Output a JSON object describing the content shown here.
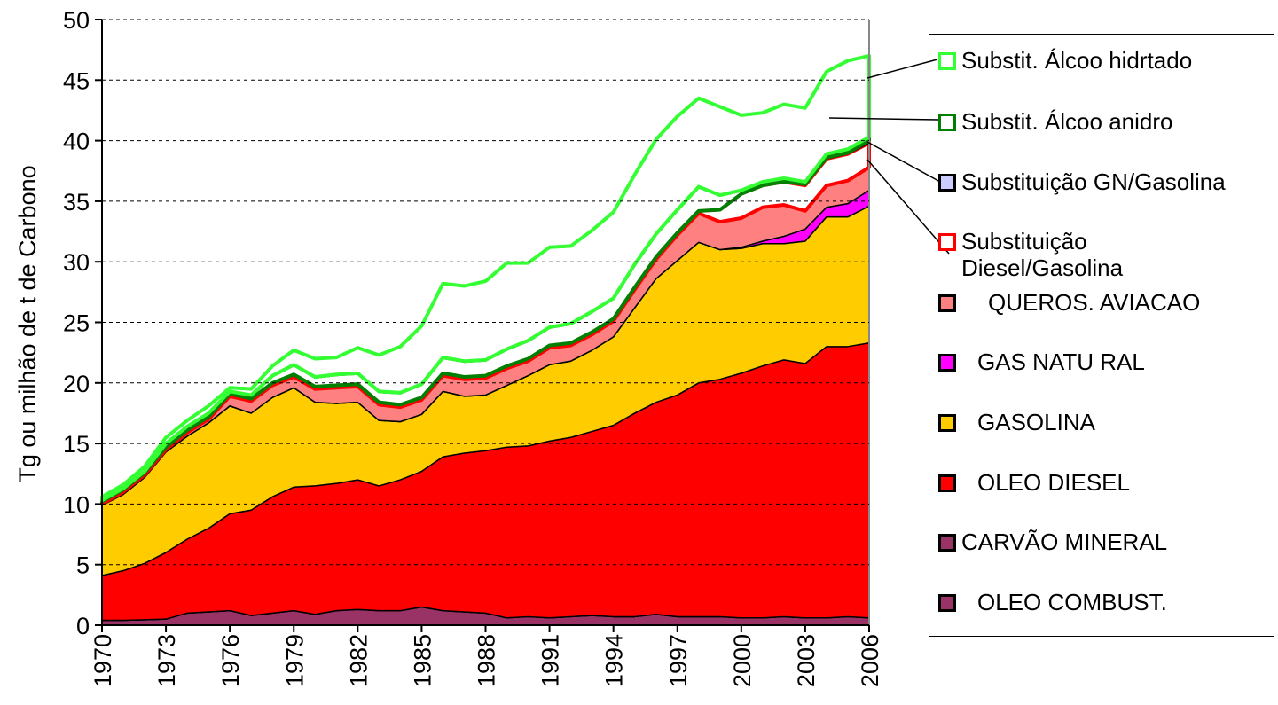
{
  "chart_data": {
    "type": "stacked_area",
    "y_label": "Tg ou milhão de t de Carbono",
    "x": [
      1970,
      1971,
      1972,
      1973,
      1974,
      1975,
      1976,
      1977,
      1978,
      1979,
      1980,
      1981,
      1982,
      1983,
      1984,
      1985,
      1986,
      1987,
      1988,
      1989,
      1990,
      1991,
      1992,
      1993,
      1994,
      1995,
      1996,
      1997,
      1998,
      1999,
      2000,
      2001,
      2002,
      2003,
      2004,
      2005,
      2006
    ],
    "xlim": [
      1970,
      2006
    ],
    "xticks": [
      1970,
      1973,
      1976,
      1979,
      1982,
      1985,
      1988,
      1991,
      1994,
      1997,
      2000,
      2003,
      2006
    ],
    "ylim": [
      0,
      50
    ],
    "yticks": [
      0,
      5,
      10,
      15,
      20,
      25,
      30,
      35,
      40,
      45,
      50
    ],
    "grid": true,
    "legend": "right",
    "series": [
      {
        "name": "OLEO COMBUST.",
        "color": "#000000",
        "fill": "#993366",
        "values": [
          0.4,
          0.4,
          0.45,
          0.5,
          1.0,
          1.1,
          1.2,
          0.8,
          1.0,
          1.2,
          0.9,
          1.2,
          1.3,
          1.2,
          1.2,
          1.5,
          1.2,
          1.1,
          1.0,
          0.6,
          0.7,
          0.6,
          0.7,
          0.8,
          0.7,
          0.7,
          0.9,
          0.7,
          0.7,
          0.7,
          0.6,
          0.6,
          0.7,
          0.6,
          0.6,
          0.7,
          0.6
        ]
      },
      {
        "name": "CARVÃO MINERAL",
        "color": "#000000",
        "fill": "#993366",
        "values": [
          0,
          0,
          0,
          0,
          0,
          0,
          0,
          0,
          0,
          0,
          0,
          0,
          0,
          0,
          0,
          0,
          0,
          0,
          0,
          0,
          0,
          0,
          0,
          0,
          0,
          0,
          0,
          0,
          0,
          0,
          0,
          0,
          0,
          0,
          0,
          0,
          0
        ]
      },
      {
        "name": "OLEO DIESEL",
        "color": "#000000",
        "fill": "#ff0000",
        "values": [
          3.7,
          4.1,
          4.65,
          5.5,
          6.1,
          6.9,
          8.0,
          8.7,
          9.6,
          10.2,
          10.6,
          10.5,
          10.7,
          10.3,
          10.8,
          11.2,
          12.7,
          13.1,
          13.4,
          14.1,
          14.1,
          14.6,
          14.8,
          15.2,
          15.8,
          16.8,
          17.5,
          18.3,
          19.3,
          19.6,
          20.2,
          20.8,
          21.2,
          21.0,
          22.4,
          22.3,
          22.7
        ]
      },
      {
        "name": "GASOLINA",
        "color": "#000000",
        "fill": "#ffcc00",
        "values": [
          5.8,
          6.3,
          7.1,
          8.3,
          8.5,
          8.7,
          8.9,
          8.0,
          8.2,
          8.2,
          6.9,
          6.6,
          6.4,
          5.4,
          4.8,
          4.7,
          5.4,
          4.7,
          4.6,
          5.1,
          5.8,
          6.3,
          6.3,
          6.7,
          7.3,
          8.7,
          10.2,
          11.1,
          11.6,
          10.7,
          10.3,
          10.1,
          9.6,
          10.1,
          10.7,
          10.7,
          11.3
        ]
      },
      {
        "name": "GAS NATU RAL",
        "color": "#000000",
        "fill": "#ff00ff",
        "values": [
          0,
          0,
          0,
          0,
          0,
          0,
          0,
          0,
          0,
          0,
          0,
          0,
          0,
          0,
          0,
          0,
          0,
          0,
          0,
          0,
          0,
          0,
          0,
          0,
          0,
          0,
          0,
          0,
          0,
          0,
          0.1,
          0.2,
          0.6,
          1.0,
          0.8,
          1.1,
          1.3
        ]
      },
      {
        "name": "QUEROS. AVIACAO",
        "color": "#000000",
        "fill": "#ff8080",
        "values": [
          0.1,
          0.2,
          0.2,
          0.2,
          0.3,
          0.3,
          0.8,
          1.0,
          1.0,
          0.9,
          1.1,
          1.3,
          1.3,
          1.3,
          1.2,
          1.2,
          1.3,
          1.4,
          1.4,
          1.4,
          1.2,
          1.4,
          1.3,
          1.3,
          1.3,
          1.5,
          1.6,
          2.1,
          2.4,
          2.3,
          2.4,
          2.8,
          2.6,
          1.5,
          1.8,
          1.9,
          1.9
        ]
      },
      {
        "name": "Substituição Diesel/Gasolina",
        "color": "#ff0000",
        "fill": "#ffffff",
        "values": [
          0.2,
          0.2,
          0.2,
          0.2,
          0.2,
          0.2,
          0.2,
          0.2,
          0.2,
          0.2,
          0.2,
          0.2,
          0.2,
          0.2,
          0.2,
          0.2,
          0.2,
          0.2,
          0.2,
          0.2,
          0.2,
          0.2,
          0.2,
          0.2,
          0.2,
          0.2,
          0.2,
          0.2,
          0.2,
          1.0,
          2.0,
          1.8,
          1.9,
          2.1,
          2.2,
          2.2,
          2.0
        ]
      },
      {
        "name": "Substituição GN/Gasolina",
        "color": "#000000",
        "fill": "#ccccff",
        "values": [
          0,
          0,
          0,
          0,
          0,
          0,
          0,
          0,
          0,
          0,
          0,
          0,
          0,
          0,
          0,
          0,
          0,
          0,
          0,
          0,
          0,
          0,
          0,
          0,
          0,
          0,
          0,
          0,
          0,
          0,
          0,
          0,
          0,
          0.1,
          0.1,
          0.1,
          0.2
        ]
      },
      {
        "name": "Substit. Álcoo anidro",
        "color": "#008000",
        "fill": "#ffffff",
        "values": [
          0.1,
          0.1,
          0.1,
          0.3,
          0.3,
          0.3,
          0.2,
          0.3,
          0.6,
          0.8,
          0.8,
          0.9,
          0.9,
          0.9,
          1.0,
          1.1,
          1.3,
          1.3,
          1.3,
          1.4,
          1.5,
          1.5,
          1.6,
          1.7,
          1.7,
          1.9,
          1.9,
          1.9,
          2.0,
          1.2,
          0.3,
          0.3,
          0.3,
          0.2,
          0.3,
          0.3,
          0.3
        ]
      },
      {
        "name": "Substit. Álcoo hidrtado",
        "color": "#33ff33",
        "fill": "#ffffff",
        "values": [
          0.3,
          0.3,
          0.4,
          0.5,
          0.5,
          0.6,
          0.3,
          0.5,
          0.8,
          1.2,
          1.5,
          1.4,
          2.1,
          3.0,
          3.8,
          4.8,
          6.1,
          6.2,
          6.5,
          7.1,
          6.4,
          6.6,
          6.4,
          6.7,
          7.1,
          7.4,
          7.8,
          7.7,
          7.3,
          7.3,
          6.2,
          5.7,
          6.1,
          6.1,
          6.8,
          7.3,
          6.7
        ]
      }
    ]
  }
}
